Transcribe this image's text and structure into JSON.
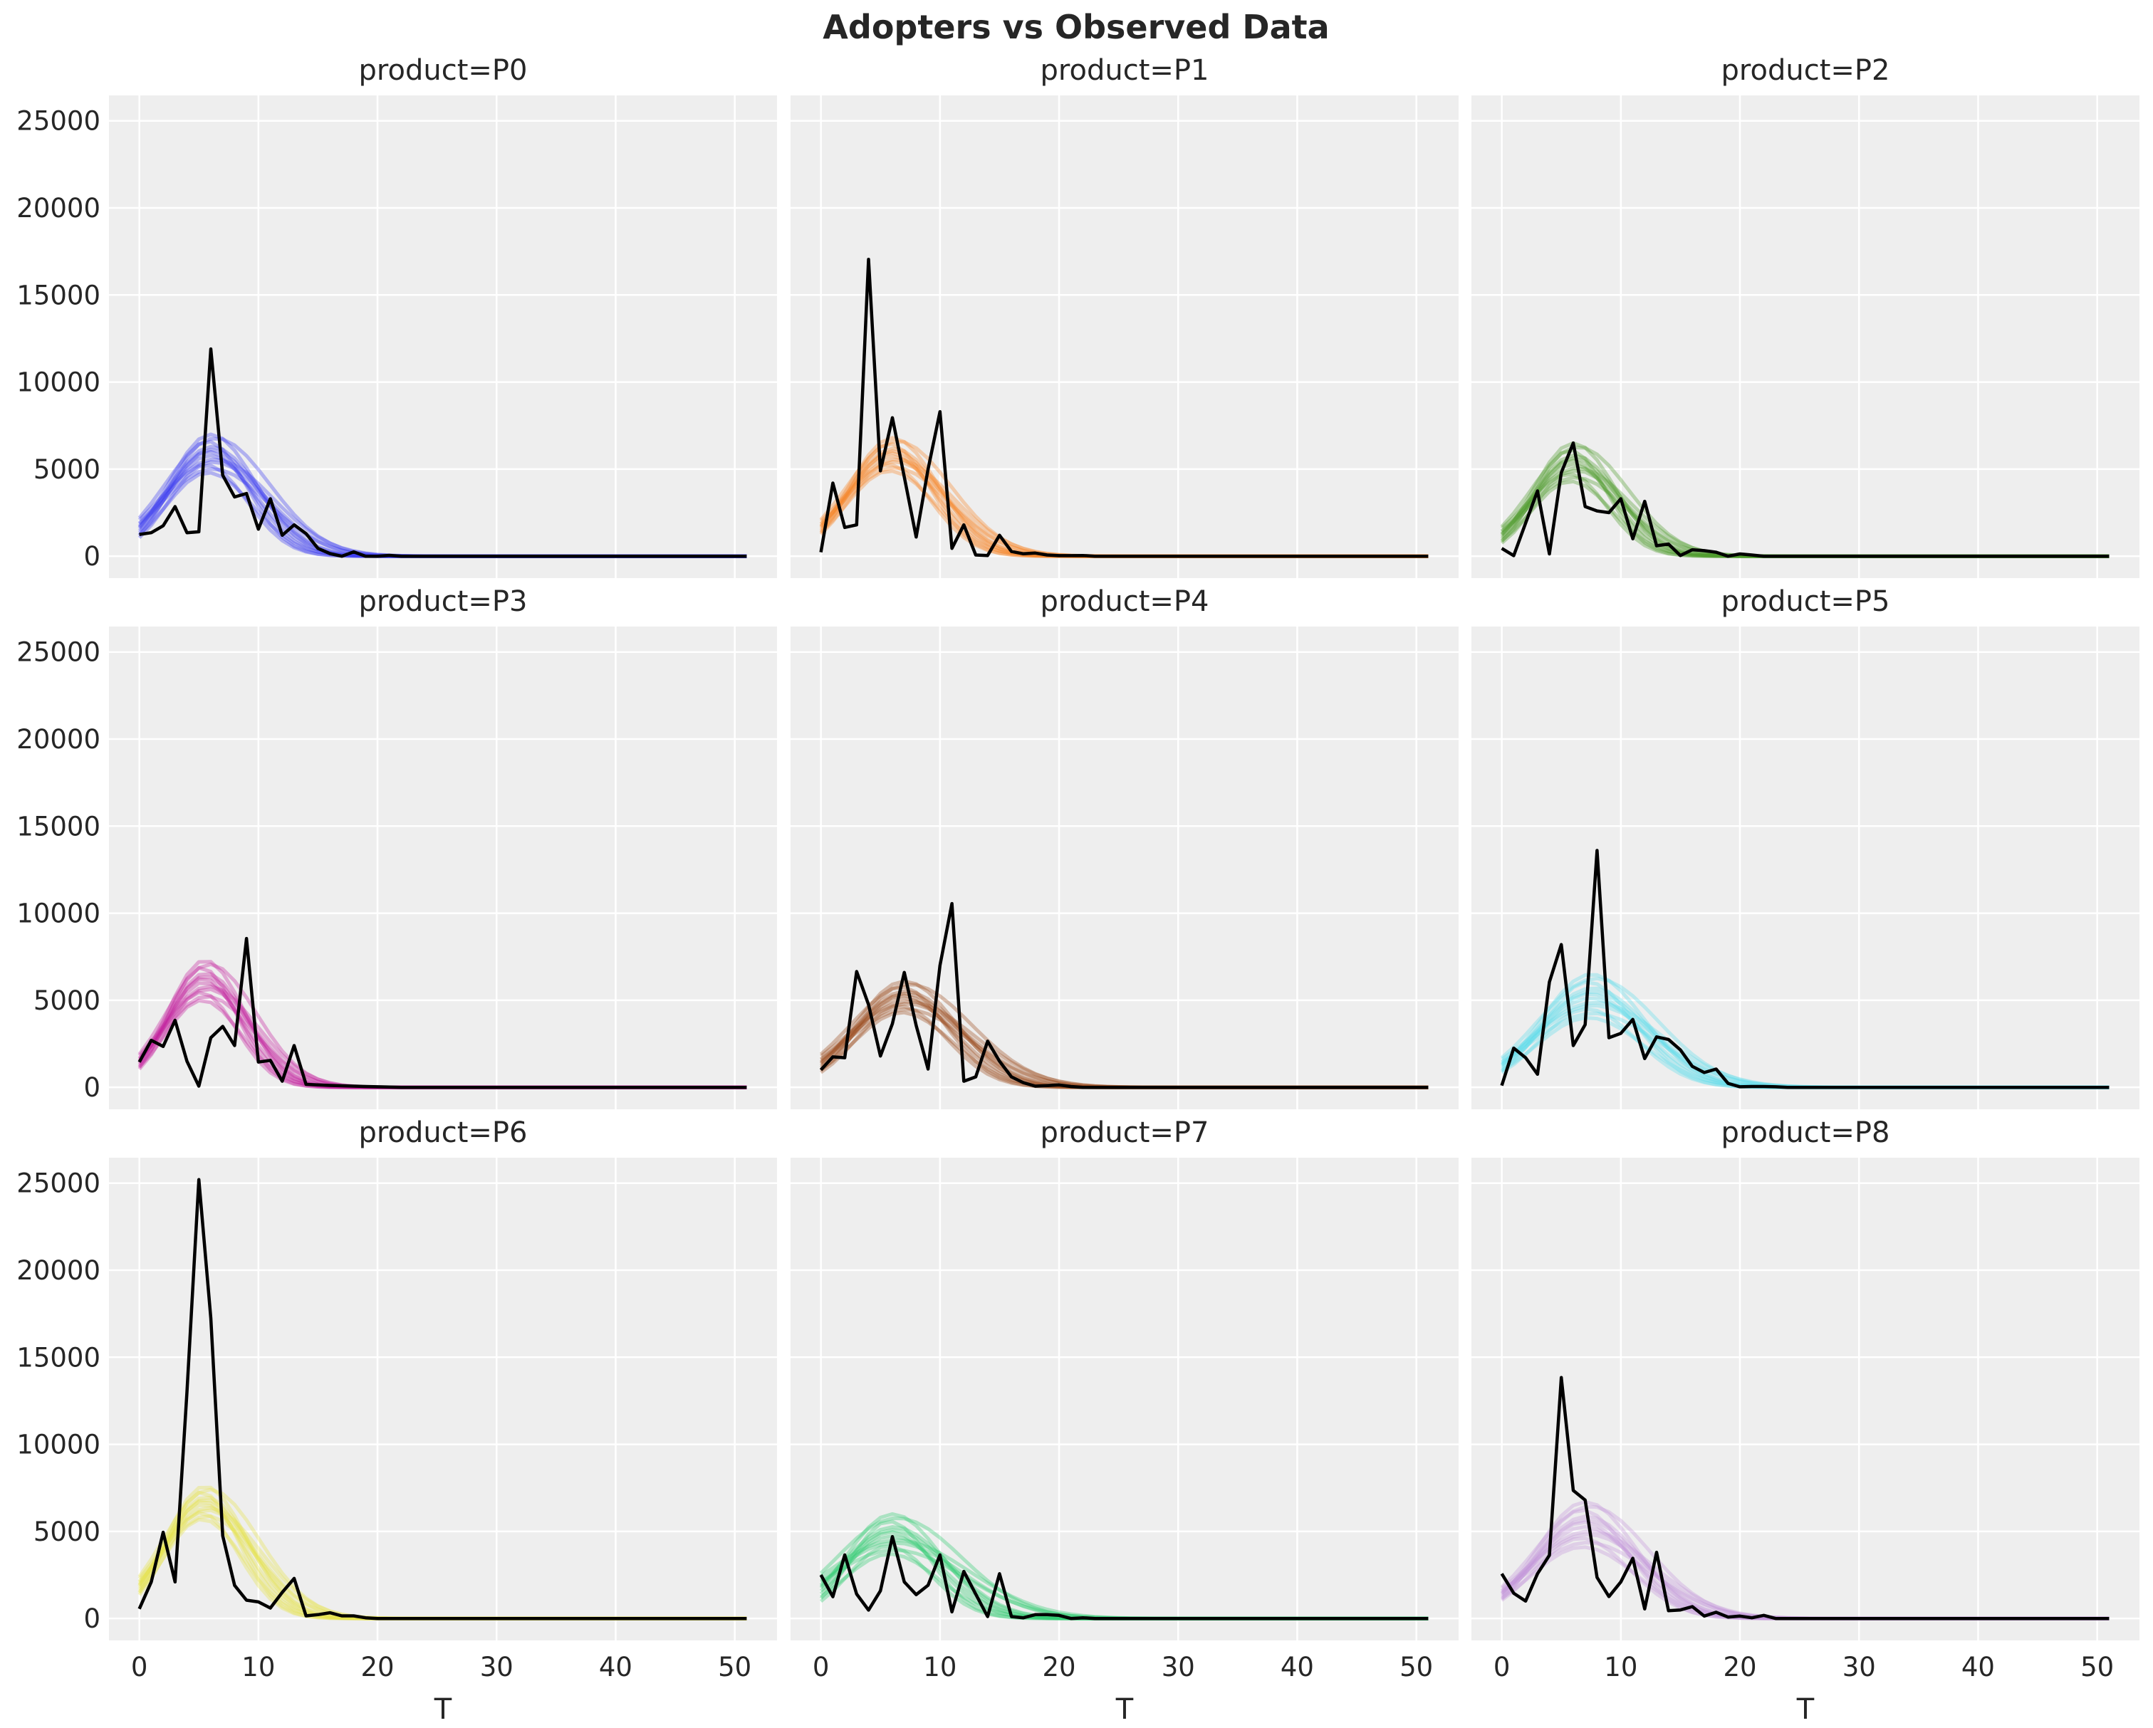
{
  "title": "Adopters vs Observed Data",
  "chart_data": {
    "type": "line",
    "title": "Adopters vs Observed Data",
    "layout": "3x3 facet grid, shared axes",
    "xlabel": "T",
    "ylabel": "",
    "xlim": [
      -2.55,
      53.55
    ],
    "ylim": [
      -1260,
      26460
    ],
    "xticks": [
      "0",
      "10",
      "20",
      "30",
      "40",
      "50"
    ],
    "yticks": [
      "0",
      "5000",
      "10000",
      "15000",
      "20000",
      "25000"
    ],
    "grid": true,
    "observed_color": "#000000",
    "panels": [
      {
        "title": "product=P0",
        "color": "#3d3df0",
        "model_band": {
          "peak_T": 6,
          "peak_range": [
            4800,
            7000
          ],
          "start_range": [
            1000,
            2200
          ]
        },
        "observed": [
          1250,
          1350,
          1750,
          2850,
          1350,
          1400,
          11900,
          4650,
          3400,
          3600,
          1550,
          3300,
          1200,
          1800,
          1300,
          450,
          150,
          0,
          250,
          0,
          0,
          50,
          0,
          0,
          0,
          0,
          0,
          0,
          0,
          0,
          0,
          0,
          0,
          0,
          0,
          0,
          0,
          0,
          0,
          0,
          0,
          0,
          0,
          0,
          0,
          0,
          0,
          0,
          0,
          0,
          0,
          0
        ]
      },
      {
        "title": "product=P1",
        "color": "#f5882a",
        "model_band": {
          "peak_T": 6,
          "peak_range": [
            4900,
            6800
          ],
          "start_range": [
            1200,
            2100
          ]
        },
        "observed": [
          230,
          4200,
          1650,
          1800,
          17050,
          4900,
          7950,
          4550,
          1100,
          5000,
          8300,
          450,
          1800,
          70,
          40,
          1200,
          270,
          140,
          180,
          70,
          30,
          30,
          40,
          0,
          0,
          0,
          0,
          0,
          0,
          0,
          0,
          0,
          0,
          0,
          0,
          0,
          0,
          0,
          0,
          0,
          0,
          0,
          0,
          0,
          0,
          0,
          0,
          0,
          0,
          0,
          0,
          0
        ]
      },
      {
        "title": "product=P2",
        "color": "#4c9a2a",
        "model_band": {
          "peak_T": 6,
          "peak_range": [
            4300,
            6500
          ],
          "start_range": [
            700,
            1700
          ]
        },
        "observed": [
          450,
          30,
          1900,
          3750,
          130,
          4800,
          6500,
          2850,
          2600,
          2500,
          3300,
          1000,
          3150,
          600,
          700,
          40,
          370,
          320,
          230,
          0,
          130,
          70,
          0,
          0,
          0,
          0,
          0,
          0,
          0,
          0,
          0,
          0,
          0,
          0,
          0,
          0,
          0,
          0,
          0,
          0,
          0,
          0,
          0,
          0,
          0,
          0,
          0,
          0,
          0,
          0,
          0,
          0
        ]
      },
      {
        "title": "product=P3",
        "color": "#c4209e",
        "model_band": {
          "peak_T": 5.5,
          "peak_range": [
            5000,
            7300
          ],
          "start_range": [
            1000,
            1900
          ]
        },
        "observed": [
          1450,
          2700,
          2350,
          3850,
          1500,
          70,
          2850,
          3500,
          2400,
          8550,
          1450,
          1550,
          350,
          2400,
          170,
          140,
          110,
          90,
          70,
          50,
          30,
          20,
          0,
          0,
          0,
          0,
          0,
          0,
          0,
          0,
          0,
          0,
          0,
          0,
          0,
          0,
          0,
          0,
          0,
          0,
          0,
          0,
          0,
          0,
          0,
          0,
          0,
          0,
          0,
          0,
          0,
          0
        ]
      },
      {
        "title": "product=P4",
        "color": "#9c4a1e",
        "model_band": {
          "peak_T": 7,
          "peak_range": [
            4300,
            6100
          ],
          "start_range": [
            800,
            1900
          ]
        },
        "observed": [
          1000,
          1750,
          1700,
          6650,
          4750,
          1800,
          3650,
          6600,
          3550,
          1050,
          7000,
          10550,
          350,
          600,
          2650,
          1500,
          600,
          270,
          70,
          100,
          140,
          50,
          0,
          0,
          0,
          0,
          0,
          0,
          0,
          0,
          0,
          0,
          0,
          0,
          0,
          0,
          0,
          0,
          0,
          0,
          0,
          0,
          0,
          0,
          0,
          0,
          0,
          0,
          0,
          0,
          0,
          0
        ]
      },
      {
        "title": "product=P5",
        "color": "#5fdcec",
        "model_band": {
          "peak_T": 7.5,
          "peak_range": [
            4000,
            6500
          ],
          "start_range": [
            800,
            1700
          ]
        },
        "observed": [
          100,
          2250,
          1700,
          750,
          6050,
          8200,
          2400,
          3600,
          13600,
          2850,
          3100,
          3900,
          1650,
          2900,
          2750,
          2150,
          1200,
          850,
          1050,
          230,
          30,
          50,
          50,
          30,
          0,
          0,
          0,
          0,
          0,
          0,
          0,
          0,
          0,
          0,
          0,
          0,
          0,
          0,
          0,
          0,
          0,
          0,
          0,
          0,
          0,
          0,
          0,
          0,
          0,
          0,
          0,
          0
        ]
      },
      {
        "title": "product=P6",
        "color": "#e6e24a",
        "model_band": {
          "peak_T": 5.5,
          "peak_range": [
            5700,
            7600
          ],
          "start_range": [
            1300,
            2400
          ]
        },
        "observed": [
          550,
          2100,
          4950,
          2100,
          13000,
          25200,
          17250,
          4750,
          1900,
          1050,
          950,
          600,
          1500,
          2300,
          150,
          220,
          330,
          150,
          150,
          40,
          0,
          0,
          0,
          0,
          0,
          0,
          0,
          0,
          0,
          0,
          0,
          0,
          0,
          0,
          0,
          0,
          0,
          0,
          0,
          0,
          0,
          0,
          0,
          0,
          0,
          0,
          0,
          0,
          0,
          0,
          0,
          0
        ]
      },
      {
        "title": "product=P7",
        "color": "#2ecc71",
        "model_band": {
          "peak_T": 6,
          "peak_range": [
            3700,
            6000
          ],
          "start_range": [
            900,
            2600
          ]
        },
        "observed": [
          2500,
          1250,
          3650,
          1400,
          480,
          1590,
          4700,
          2100,
          1370,
          1910,
          3650,
          380,
          2700,
          1400,
          110,
          2570,
          110,
          40,
          220,
          220,
          180,
          0,
          40,
          0,
          0,
          0,
          0,
          0,
          0,
          0,
          0,
          0,
          0,
          0,
          0,
          0,
          0,
          0,
          0,
          0,
          0,
          0,
          0,
          0,
          0,
          0,
          0,
          0,
          0,
          0,
          0,
          0
        ]
      },
      {
        "title": "product=P8",
        "color": "#c394da",
        "model_band": {
          "peak_T": 7,
          "peak_range": [
            4100,
            6700
          ],
          "start_range": [
            1000,
            1800
          ]
        },
        "observed": [
          2570,
          1450,
          1000,
          2570,
          3630,
          13840,
          7350,
          6800,
          2360,
          1260,
          2100,
          3460,
          550,
          3800,
          450,
          490,
          680,
          140,
          360,
          80,
          140,
          40,
          180,
          0,
          0,
          0,
          0,
          0,
          0,
          0,
          0,
          0,
          0,
          0,
          0,
          0,
          0,
          0,
          0,
          0,
          0,
          0,
          0,
          0,
          0,
          0,
          0,
          0,
          0,
          0,
          0,
          0
        ]
      }
    ]
  }
}
